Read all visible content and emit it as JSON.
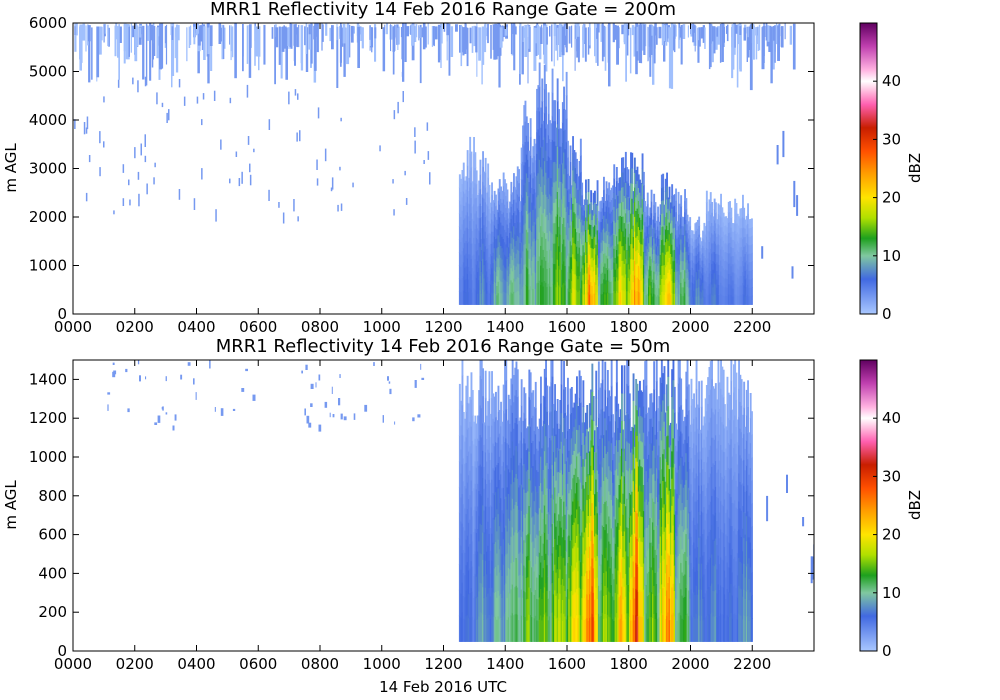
{
  "figure": {
    "xlabel": "14 Feb 2016 UTC"
  },
  "colorbar": {
    "label": "dBZ",
    "range": [
      0,
      50
    ],
    "ticks": [
      0,
      10,
      20,
      30,
      40
    ],
    "tick_labels": [
      "0",
      "10",
      "20",
      "30",
      "40"
    ],
    "colors": [
      "#aac8ff",
      "#4169e1",
      "#80c8a0",
      "#1ea01e",
      "#b0e000",
      "#ffe400",
      "#ffa000",
      "#ff5000",
      "#c81e00",
      "#ff60b0",
      "#ffffff",
      "#ffb0e0",
      "#c040b0",
      "#600060"
    ],
    "color_stops": [
      0,
      6,
      10,
      13,
      16.5,
      20,
      24,
      28,
      32,
      36,
      40,
      42,
      46,
      50
    ]
  },
  "chart_data": [
    {
      "type": "heatmap",
      "title": "MRR1 Reflectivity 14 Feb 2016 Range Gate = 200m",
      "ylabel": "m AGL",
      "xlabel": "",
      "xlim": [
        "0000",
        "2400"
      ],
      "ylim": [
        0,
        6000
      ],
      "x_ticks": [
        "0000",
        "0200",
        "0400",
        "0600",
        "0800",
        "1000",
        "1200",
        "1400",
        "1600",
        "1800",
        "2000",
        "2200"
      ],
      "y_ticks": [
        "0",
        "1000",
        "2000",
        "3000",
        "4000",
        "5000",
        "6000"
      ],
      "y_tick_values": [
        0,
        1000,
        2000,
        3000,
        4000,
        5000,
        6000
      ],
      "value_units": "dBZ",
      "echo_columns": [
        {
          "time": "1245",
          "top_m": 3500,
          "peak_dbz": 6
        },
        {
          "time": "1315",
          "top_m": 3200,
          "peak_dbz": 8
        },
        {
          "time": "1345",
          "top_m": 2800,
          "peak_dbz": 10
        },
        {
          "time": "1415",
          "top_m": 2900,
          "peak_dbz": 12
        },
        {
          "time": "1445",
          "top_m": 4200,
          "peak_dbz": 13
        },
        {
          "time": "1515",
          "top_m": 5000,
          "peak_dbz": 14
        },
        {
          "time": "1545",
          "top_m": 5000,
          "peak_dbz": 16
        },
        {
          "time": "1615",
          "top_m": 3500,
          "peak_dbz": 18
        },
        {
          "time": "1645",
          "top_m": 2800,
          "peak_dbz": 25
        },
        {
          "time": "1715",
          "top_m": 2800,
          "peak_dbz": 14
        },
        {
          "time": "1745",
          "top_m": 3200,
          "peak_dbz": 22
        },
        {
          "time": "1815",
          "top_m": 3200,
          "peak_dbz": 25
        },
        {
          "time": "1845",
          "top_m": 2500,
          "peak_dbz": 15
        },
        {
          "time": "1915",
          "top_m": 2800,
          "peak_dbz": 24
        },
        {
          "time": "1945",
          "top_m": 2500,
          "peak_dbz": 12
        },
        {
          "time": "2015",
          "top_m": 2000,
          "peak_dbz": 8
        },
        {
          "time": "2045",
          "top_m": 2500,
          "peak_dbz": 7
        },
        {
          "time": "2115",
          "top_m": 2300,
          "peak_dbz": 6
        },
        {
          "time": "2145",
          "top_m": 2500,
          "peak_dbz": 6
        }
      ],
      "upper_noise_band_m": [
        5000,
        6000
      ],
      "noise_dbz": 3,
      "min_height_m": 200
    },
    {
      "type": "heatmap",
      "title": "MRR1 Reflectivity 14 Feb 2016 Range Gate = 50m",
      "ylabel": "m AGL",
      "xlabel": "14 Feb 2016 UTC",
      "xlim": [
        "0000",
        "2400"
      ],
      "ylim": [
        0,
        1500
      ],
      "x_ticks": [
        "0000",
        "0200",
        "0400",
        "0600",
        "0800",
        "1000",
        "1200",
        "1400",
        "1600",
        "1800",
        "2000",
        "2200"
      ],
      "y_ticks": [
        "0",
        "200",
        "400",
        "600",
        "800",
        "1000",
        "1200",
        "1400"
      ],
      "y_tick_values": [
        0,
        200,
        400,
        600,
        800,
        1000,
        1200,
        1400
      ],
      "value_units": "dBZ",
      "echo_columns": [
        {
          "time": "1245",
          "top_m": 1500,
          "peak_dbz": 7
        },
        {
          "time": "1315",
          "top_m": 1500,
          "peak_dbz": 9
        },
        {
          "time": "1345",
          "top_m": 1500,
          "peak_dbz": 10
        },
        {
          "time": "1415",
          "top_m": 1500,
          "peak_dbz": 13
        },
        {
          "time": "1445",
          "top_m": 1500,
          "peak_dbz": 15
        },
        {
          "time": "1515",
          "top_m": 1500,
          "peak_dbz": 16
        },
        {
          "time": "1545",
          "top_m": 1500,
          "peak_dbz": 19
        },
        {
          "time": "1615",
          "top_m": 1500,
          "peak_dbz": 22
        },
        {
          "time": "1645",
          "top_m": 1500,
          "peak_dbz": 30
        },
        {
          "time": "1715",
          "top_m": 1500,
          "peak_dbz": 17
        },
        {
          "time": "1745",
          "top_m": 1500,
          "peak_dbz": 22
        },
        {
          "time": "1815",
          "top_m": 1500,
          "peak_dbz": 30
        },
        {
          "time": "1845",
          "top_m": 1500,
          "peak_dbz": 16
        },
        {
          "time": "1915",
          "top_m": 1500,
          "peak_dbz": 27
        },
        {
          "time": "1945",
          "top_m": 1500,
          "peak_dbz": 14
        },
        {
          "time": "2015",
          "top_m": 1500,
          "peak_dbz": 8
        },
        {
          "time": "2045",
          "top_m": 1500,
          "peak_dbz": 8
        },
        {
          "time": "2115",
          "top_m": 1500,
          "peak_dbz": 7
        },
        {
          "time": "2145",
          "top_m": 1500,
          "peak_dbz": 9
        }
      ],
      "min_height_m": 50
    }
  ]
}
